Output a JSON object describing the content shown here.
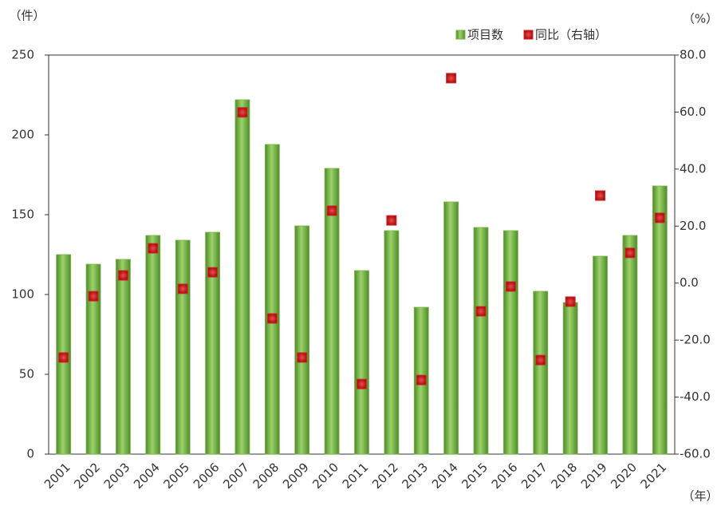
{
  "chart_data": {
    "type": "bar_line",
    "y_unit": "（件）",
    "y2_unit": "（%）",
    "x_unit": "（年）",
    "categories": [
      "2001",
      "2002",
      "2003",
      "2004",
      "2005",
      "2006",
      "2007",
      "2008",
      "2009",
      "2010",
      "2011",
      "2012",
      "2013",
      "2014",
      "2015",
      "2016",
      "2017",
      "2018",
      "2019",
      "2020",
      "2021"
    ],
    "series": [
      {
        "name": "项目数",
        "color": "#7ab648",
        "type": "bar",
        "values": [
          125,
          119,
          122,
          137,
          134,
          139,
          222,
          194,
          143,
          179,
          115,
          140,
          92,
          158,
          142,
          140,
          102,
          95,
          124,
          137,
          168
        ]
      },
      {
        "name": "同比（右轴）",
        "color": "#d42a2a",
        "type": "marker",
        "axis": "y2",
        "values": [
          -26.1,
          -4.6,
          2.7,
          12.2,
          -2.0,
          3.8,
          59.9,
          -12.4,
          -26.1,
          25.4,
          -35.4,
          22.0,
          -34.0,
          71.9,
          -9.9,
          -1.2,
          -27.0,
          -6.5,
          30.7,
          10.6,
          22.9
        ]
      }
    ],
    "ylim": [
      0,
      250
    ],
    "yticks": [
      0,
      50,
      100,
      150,
      200,
      250
    ],
    "y2lim": [
      -60,
      80
    ],
    "y2ticks": [
      {
        "value": -60,
        "label": "-60.0"
      },
      {
        "value": -40,
        "label": "-40.0"
      },
      {
        "value": -20,
        "label": "-20.0"
      },
      {
        "value": 0,
        "label": "0.0"
      },
      {
        "value": 20,
        "label": "20.0"
      },
      {
        "value": 40,
        "label": "40.0"
      },
      {
        "value": 60,
        "label": "60.0"
      },
      {
        "value": 80,
        "label": "80.0"
      }
    ],
    "legend": "top-right"
  }
}
